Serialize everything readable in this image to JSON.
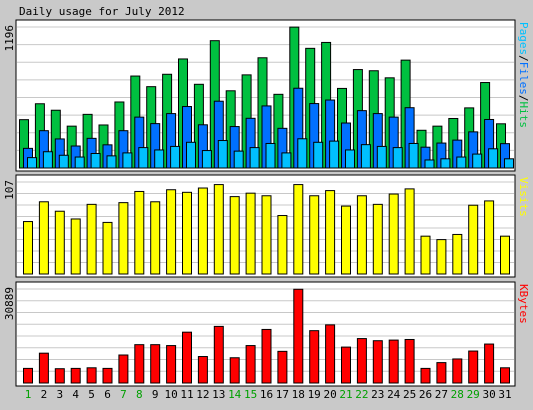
{
  "chart_data": {
    "type": "bar",
    "title": "Daily usage for July 2012",
    "days": [
      1,
      2,
      3,
      4,
      5,
      6,
      7,
      8,
      9,
      10,
      11,
      12,
      13,
      14,
      15,
      16,
      17,
      18,
      19,
      20,
      21,
      22,
      23,
      24,
      25,
      26,
      27,
      28,
      29,
      30,
      31
    ],
    "weekend_days": [
      1,
      7,
      8,
      14,
      15,
      21,
      22,
      28,
      29
    ],
    "colors": {
      "page_bg": "#c9c9c9",
      "panel_bg": "#ffffff",
      "hits": "#00c040",
      "files": "#0070ff",
      "pages": "#00c0ff",
      "visits": "#ffff00",
      "kbytes": "#ff0000",
      "weekday_label": "#000000",
      "weekend_label": "#00a000"
    },
    "panels": [
      {
        "id": "hits",
        "ymax_label": "1196",
        "ylim": [
          0,
          1196
        ],
        "legend": [
          {
            "text": "Pages",
            "color": "#00c0ff"
          },
          {
            "text": "/",
            "color": "#000000"
          },
          {
            "text": "Files",
            "color": "#0070ff"
          },
          {
            "text": "/",
            "color": "#000000"
          },
          {
            "text": "Hits",
            "color": "#00c040"
          }
        ],
        "series": [
          {
            "name": "Hits",
            "color": "#00c040",
            "values": [
              410,
              545,
              490,
              355,
              455,
              365,
              560,
              780,
              690,
              795,
              925,
              710,
              1080,
              655,
              790,
              935,
              625,
              1195,
              1015,
              1065,
              675,
              835,
              825,
              765,
              915,
              320,
              355,
              420,
              510,
              725,
              375
            ]
          },
          {
            "name": "Files",
            "color": "#0070ff",
            "values": [
              175,
              325,
              255,
              195,
              260,
              205,
              325,
              440,
              385,
              470,
              530,
              375,
              575,
              360,
              430,
              535,
              345,
              685,
              555,
              585,
              390,
              495,
              470,
              440,
              520,
              185,
              220,
              245,
              315,
              420,
              215
            ]
          },
          {
            "name": "Pages",
            "color": "#00c0ff",
            "values": [
              105,
              155,
              125,
              110,
              140,
              120,
              145,
              190,
              170,
              200,
              235,
              165,
              250,
              160,
              190,
              225,
              145,
              265,
              235,
              245,
              170,
              215,
              200,
              190,
              225,
              85,
              95,
              110,
              135,
              180,
              95
            ]
          }
        ]
      },
      {
        "id": "visits",
        "ymax_label": "107",
        "ylim": [
          0,
          107
        ],
        "legend": [
          {
            "text": "Visits",
            "color": "#ffff00"
          }
        ],
        "series": [
          {
            "name": "Visits",
            "color": "#ffff00",
            "values": [
              61,
              84,
              73,
              64,
              81,
              60,
              83,
              96,
              84,
              98,
              95,
              100,
              104,
              90,
              94,
              91,
              68,
              104,
              91,
              97,
              79,
              91,
              81,
              93,
              99,
              44,
              40,
              46,
              80,
              85,
              44
            ]
          }
        ]
      },
      {
        "id": "kbytes",
        "ymax_label": "30889",
        "ylim": [
          0,
          30889
        ],
        "legend": [
          {
            "text": "KBytes",
            "color": "#ff0000"
          }
        ],
        "series": [
          {
            "name": "KBytes",
            "color": "#ff0000",
            "values": [
              4800,
              9800,
              4700,
              4800,
              5000,
              4800,
              9200,
              12600,
              12600,
              12300,
              16700,
              8700,
              18600,
              8300,
              12300,
              17600,
              10400,
              30800,
              17200,
              19100,
              11800,
              14600,
              13900,
              14100,
              14300,
              4800,
              6700,
              7900,
              10500,
              12800,
              5000
            ]
          }
        ]
      }
    ]
  }
}
